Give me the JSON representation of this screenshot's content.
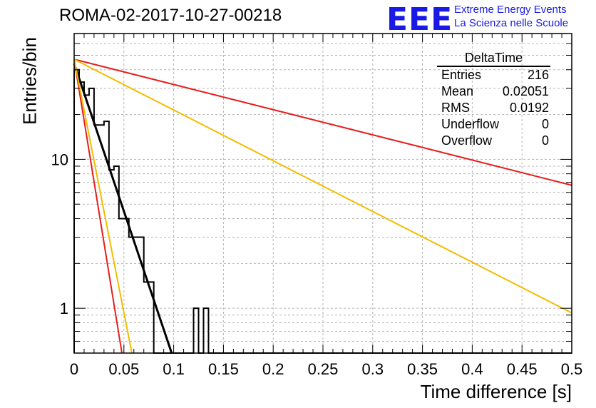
{
  "header": {
    "title": "ROMA-02-2017-10-27-00218",
    "logo_text": "EEE",
    "logo_line1": "Extreme Energy Events",
    "logo_line2": "La Scienza nelle Scuole"
  },
  "stats": {
    "title": "DeltaTime",
    "rows": [
      {
        "label": "Entries",
        "value": "216"
      },
      {
        "label": "Mean",
        "value": "0.02051"
      },
      {
        "label": "RMS",
        "value": "0.0192"
      },
      {
        "label": "Underflow",
        "value": "0"
      },
      {
        "label": "Overflow",
        "value": "0"
      }
    ]
  },
  "chart_data": {
    "type": "bar",
    "histogram": "step",
    "xlabel": "Time difference [s]",
    "ylabel": "Entries/bin",
    "xlim": [
      0,
      0.5
    ],
    "ylim": [
      0.5,
      70
    ],
    "yscale": "log",
    "grid": true,
    "legend": "top-right",
    "x_ticks": [
      "0",
      "0.05",
      "0.1",
      "0.15",
      "0.2",
      "0.25",
      "0.3",
      "0.35",
      "0.4",
      "0.45",
      "0.5"
    ],
    "y_ticks": [
      "1",
      "10"
    ],
    "bin_width": 0.005,
    "bins": [
      {
        "x0": 0.0,
        "x1": 0.005,
        "y": 40
      },
      {
        "x0": 0.005,
        "x1": 0.01,
        "y": 33
      },
      {
        "x0": 0.01,
        "x1": 0.015,
        "y": 27
      },
      {
        "x0": 0.015,
        "x1": 0.02,
        "y": 30
      },
      {
        "x0": 0.02,
        "x1": 0.025,
        "y": 17
      },
      {
        "x0": 0.025,
        "x1": 0.03,
        "y": 17
      },
      {
        "x0": 0.03,
        "x1": 0.035,
        "y": 18
      },
      {
        "x0": 0.035,
        "x1": 0.04,
        "y": 8.5
      },
      {
        "x0": 0.04,
        "x1": 0.045,
        "y": 9
      },
      {
        "x0": 0.045,
        "x1": 0.05,
        "y": 4
      },
      {
        "x0": 0.05,
        "x1": 0.055,
        "y": 4
      },
      {
        "x0": 0.055,
        "x1": 0.06,
        "y": 3
      },
      {
        "x0": 0.06,
        "x1": 0.065,
        "y": 3
      },
      {
        "x0": 0.065,
        "x1": 0.07,
        "y": 3
      },
      {
        "x0": 0.07,
        "x1": 0.075,
        "y": 1.5
      },
      {
        "x0": 0.075,
        "x1": 0.08,
        "y": 1.5
      },
      {
        "x0": 0.08,
        "x1": 0.12,
        "y": 0
      },
      {
        "x0": 0.12,
        "x1": 0.125,
        "y": 1
      },
      {
        "x0": 0.125,
        "x1": 0.13,
        "y": 0
      },
      {
        "x0": 0.13,
        "x1": 0.135,
        "y": 1
      },
      {
        "x0": 0.135,
        "x1": 0.5,
        "y": 0
      }
    ],
    "series": [
      {
        "color": "#000000",
        "points": [
          [
            0.0,
            44
          ],
          [
            0.098,
            0.5
          ]
        ]
      },
      {
        "color": "#e61e1e",
        "points": [
          [
            0.0,
            47
          ],
          [
            0.5,
            6.7
          ]
        ]
      },
      {
        "color": "#e61e1e",
        "points": [
          [
            0.0,
            47
          ],
          [
            0.048,
            0.5
          ]
        ]
      },
      {
        "color": "#f2bd00",
        "points": [
          [
            0.0,
            47
          ],
          [
            0.5,
            0.93
          ]
        ]
      },
      {
        "color": "#f2bd00",
        "points": [
          [
            0.0,
            47
          ],
          [
            0.058,
            0.5
          ]
        ]
      }
    ]
  }
}
